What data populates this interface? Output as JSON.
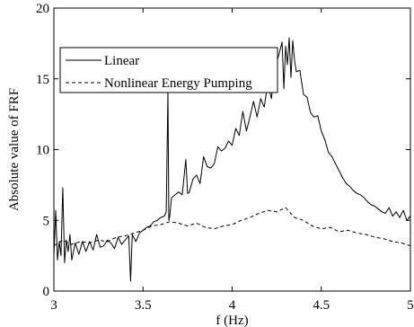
{
  "chart_data": {
    "type": "line",
    "title": "",
    "xlabel": "f (Hz)",
    "ylabel": "Absolute value of FRF",
    "xlim": [
      3,
      5
    ],
    "ylim": [
      0,
      20
    ],
    "xticks": [
      3,
      3.5,
      4,
      4.5,
      5
    ],
    "xtick_labels": [
      "3",
      "3.5",
      "4",
      "4.5",
      "5"
    ],
    "yticks": [
      0,
      5,
      10,
      15,
      20
    ],
    "ytick_labels": [
      "0",
      "5",
      "10",
      "15",
      "20"
    ],
    "grid": false,
    "legend_position": "upper-left",
    "series": [
      {
        "name": "Linear",
        "style": "solid",
        "color": "#000000",
        "x": [
          3.0,
          3.01,
          3.02,
          3.03,
          3.04,
          3.05,
          3.06,
          3.07,
          3.08,
          3.09,
          3.1,
          3.12,
          3.14,
          3.16,
          3.18,
          3.2,
          3.22,
          3.24,
          3.26,
          3.28,
          3.3,
          3.32,
          3.34,
          3.36,
          3.38,
          3.4,
          3.42,
          3.43,
          3.44,
          3.46,
          3.48,
          3.5,
          3.52,
          3.54,
          3.56,
          3.58,
          3.6,
          3.62,
          3.63,
          3.64,
          3.645,
          3.65,
          3.66,
          3.68,
          3.7,
          3.72,
          3.74,
          3.75,
          3.76,
          3.78,
          3.8,
          3.82,
          3.84,
          3.86,
          3.88,
          3.9,
          3.92,
          3.94,
          3.96,
          3.98,
          4.0,
          4.02,
          4.04,
          4.06,
          4.08,
          4.1,
          4.12,
          4.14,
          4.16,
          4.18,
          4.2,
          4.22,
          4.24,
          4.26,
          4.28,
          4.29,
          4.3,
          4.31,
          4.32,
          4.33,
          4.34,
          4.35,
          4.36,
          4.38,
          4.4,
          4.42,
          4.44,
          4.46,
          4.48,
          4.5,
          4.52,
          4.54,
          4.56,
          4.58,
          4.6,
          4.62,
          4.64,
          4.66,
          4.68,
          4.7,
          4.72,
          4.74,
          4.76,
          4.78,
          4.8,
          4.82,
          4.84,
          4.86,
          4.88,
          4.9,
          4.92,
          4.94,
          4.96,
          4.98,
          5.0
        ],
        "y": [
          2.5,
          5.7,
          2.2,
          3.5,
          2.5,
          7.3,
          2.0,
          3.6,
          2.8,
          4.0,
          2.2,
          3.4,
          2.6,
          3.5,
          2.8,
          3.5,
          2.9,
          4.0,
          3.1,
          3.2,
          3.6,
          3.4,
          3.0,
          3.8,
          3.3,
          3.6,
          3.9,
          0.7,
          4.0,
          3.5,
          4.1,
          4.3,
          4.5,
          4.6,
          4.9,
          5.0,
          5.2,
          5.3,
          5.6,
          14.1,
          5.0,
          5.3,
          6.6,
          6.8,
          7.0,
          6.8,
          9.3,
          6.9,
          7.0,
          7.9,
          8.2,
          7.6,
          9.5,
          8.8,
          8.7,
          9.0,
          10.2,
          9.9,
          10.1,
          10.6,
          10.3,
          11.5,
          11.0,
          12.7,
          11.3,
          12.3,
          13.4,
          12.3,
          13.6,
          13.0,
          14.7,
          13.6,
          15.8,
          16.6,
          17.6,
          14.3,
          17.3,
          16.0,
          17.9,
          15.1,
          17.7,
          16.3,
          15.5,
          15.6,
          13.9,
          13.7,
          12.6,
          12.3,
          12.4,
          11.3,
          10.7,
          9.8,
          9.5,
          9.0,
          8.5,
          8.0,
          7.6,
          7.4,
          7.1,
          6.9,
          6.8,
          6.6,
          6.3,
          6.1,
          6.0,
          5.8,
          5.6,
          5.5,
          5.9,
          5.3,
          5.6,
          5.2,
          5.7,
          5.0,
          5.3
        ]
      },
      {
        "name": "Nonlinear Energy Pumping",
        "style": "dashed",
        "color": "#000000",
        "x": [
          3.0,
          3.05,
          3.1,
          3.15,
          3.2,
          3.25,
          3.3,
          3.35,
          3.4,
          3.45,
          3.5,
          3.55,
          3.6,
          3.65,
          3.7,
          3.75,
          3.8,
          3.85,
          3.9,
          3.95,
          4.0,
          4.05,
          4.1,
          4.15,
          4.2,
          4.25,
          4.3,
          4.35,
          4.4,
          4.45,
          4.5,
          4.55,
          4.6,
          4.65,
          4.7,
          4.75,
          4.8,
          4.85,
          4.9,
          4.95,
          5.0
        ],
        "y": [
          3.2,
          3.6,
          3.3,
          3.5,
          3.4,
          3.6,
          3.5,
          3.8,
          3.9,
          4.1,
          4.3,
          4.6,
          4.7,
          4.9,
          4.8,
          4.6,
          4.8,
          4.5,
          4.4,
          4.6,
          4.7,
          5.0,
          5.2,
          5.5,
          5.7,
          5.6,
          5.9,
          5.2,
          5.0,
          4.6,
          4.4,
          4.5,
          4.2,
          4.3,
          4.1,
          4.0,
          3.8,
          3.7,
          3.5,
          3.4,
          3.2
        ]
      }
    ]
  }
}
